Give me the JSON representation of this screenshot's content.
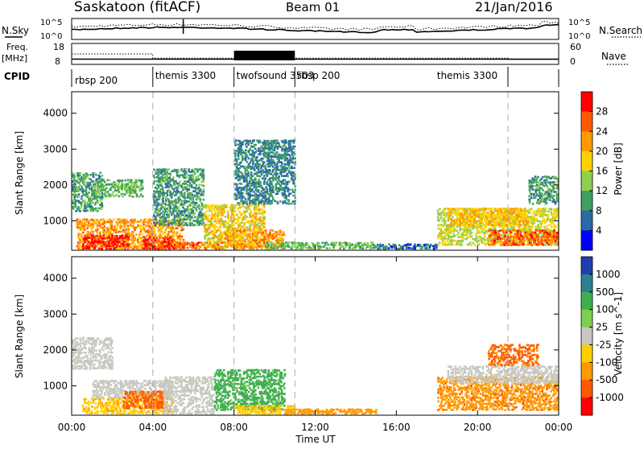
{
  "header": {
    "station": "Saskatoon (fitACF)",
    "beam": "Beam 01",
    "date": "21/Jan/2016"
  },
  "labels": {
    "nsky": "N.Sky",
    "nsearch": "N.Search",
    "freq": "Freq.",
    "freq_unit": "[MHz]",
    "nave": "Nave",
    "cpid": "CPID",
    "noise_left_top": "10^5",
    "noise_left_bot": "10^0",
    "noise_right_top": "10^5",
    "noise_right_bot": "10^0",
    "freq_left_top": "18",
    "freq_left_bot": "8",
    "nave_right_top": "60",
    "nave_right_bot": "0"
  },
  "chart_data": [
    {
      "type": "line",
      "panel": "noise",
      "title": "",
      "series": [
        {
          "name": "N.Sky",
          "style": "solid"
        },
        {
          "name": "N.Search",
          "style": "dotted"
        }
      ]
    },
    {
      "type": "line",
      "panel": "frequency / nave",
      "series": [
        {
          "name": "Freq.",
          "style": "solid",
          "x": [
            0,
            24
          ],
          "values": [
            10.5,
            10.5
          ]
        },
        {
          "name": "Nave",
          "style": "dotted",
          "x": [
            0,
            4,
            4,
            21.5,
            21.5,
            24
          ],
          "values": [
            30,
            30,
            18,
            18,
            14,
            14
          ]
        }
      ],
      "ylim_freq": [
        8,
        18
      ],
      "ylim_nave": [
        0,
        60
      ]
    },
    {
      "type": "table",
      "panel": "CPID",
      "segments": [
        {
          "label": "rbsp 200",
          "start": 0,
          "end": 4
        },
        {
          "label": "themis 3300",
          "start": 4,
          "end": 8
        },
        {
          "label": "twofsound 3503",
          "start": 8,
          "end": 11
        },
        {
          "label": "rbsp 200",
          "start": 11,
          "end": 21.5
        },
        {
          "label": "themis 3300",
          "start": 21.5,
          "end": 24
        }
      ]
    },
    {
      "type": "heatmap",
      "panel": "power",
      "ylabel": "Slant Range [km]",
      "ylim": [
        180,
        4600
      ],
      "yticks": [
        1000,
        2000,
        3000,
        4000
      ],
      "colorbar": {
        "label": "Power [dB]",
        "ticks": [
          "28",
          "24",
          "20",
          "16",
          "12",
          "8",
          "4"
        ],
        "colors": [
          "#ff0000",
          "#ff5a00",
          "#ff9a00",
          "#ffd200",
          "#8fd050",
          "#3f9f5f",
          "#2a6aa8",
          "#0000ff"
        ]
      },
      "regions": [
        {
          "t0": 0.2,
          "t1": 5.5,
          "r0": 250,
          "r1": 1100,
          "v": 22
        },
        {
          "t0": 0.5,
          "t1": 2.8,
          "r0": 250,
          "r1": 650,
          "v": 30
        },
        {
          "t0": 3.5,
          "t1": 5.0,
          "r0": 250,
          "r1": 600,
          "v": 28
        },
        {
          "t0": 5.0,
          "t1": 7.5,
          "r0": 250,
          "r1": 450,
          "v": 26
        },
        {
          "t0": 0.0,
          "t1": 1.5,
          "r0": 1300,
          "r1": 2400,
          "v": 10
        },
        {
          "t0": 1.0,
          "t1": 3.5,
          "r0": 1700,
          "r1": 2200,
          "v": 12
        },
        {
          "t0": 4.0,
          "t1": 6.5,
          "r0": 900,
          "r1": 2500,
          "v": 10
        },
        {
          "t0": 6.5,
          "t1": 9.5,
          "r0": 300,
          "r1": 1500,
          "v": 18
        },
        {
          "t0": 7.5,
          "t1": 10.5,
          "r0": 250,
          "r1": 800,
          "v": 22
        },
        {
          "t0": 8.0,
          "t1": 11.0,
          "r0": 1500,
          "r1": 3300,
          "v": 8
        },
        {
          "t0": 9.5,
          "t1": 15.0,
          "r0": 250,
          "r1": 450,
          "v": 12
        },
        {
          "t0": 15.0,
          "t1": 18.0,
          "r0": 250,
          "r1": 400,
          "v": 6
        },
        {
          "t0": 18.0,
          "t1": 24.0,
          "r0": 350,
          "r1": 1400,
          "v": 16
        },
        {
          "t0": 20.5,
          "t1": 24.0,
          "r0": 350,
          "r1": 800,
          "v": 26
        },
        {
          "t0": 18.5,
          "t1": 22.5,
          "r0": 900,
          "r1": 1400,
          "v": 20
        },
        {
          "t0": 22.5,
          "t1": 24.0,
          "r0": 1500,
          "r1": 2300,
          "v": 10
        }
      ]
    },
    {
      "type": "heatmap",
      "panel": "velocity",
      "ylabel": "Slant Range [km]",
      "ylim": [
        180,
        4600
      ],
      "yticks": [
        1000,
        2000,
        3000,
        4000
      ],
      "xlabel": "Time UT",
      "xticks": [
        "00:00",
        "04:00",
        "08:00",
        "12:00",
        "16:00",
        "20:00",
        "00:00"
      ],
      "colorbar": {
        "label": "Velocity [m s^-1]",
        "ticks": [
          "1000",
          "500",
          "100",
          "25",
          "-25",
          "-100",
          "-500",
          "-1000"
        ],
        "colors": [
          "#1f3fb0",
          "#2f7f8f",
          "#3faf4f",
          "#7fd04f",
          "#c8c8c0",
          "#ffd000",
          "#ff9a00",
          "#ff5a00",
          "#ff0000"
        ]
      },
      "regions": [
        {
          "t0": 0.0,
          "t1": 2.0,
          "r0": 1500,
          "r1": 2400,
          "v": 0
        },
        {
          "t0": 0.5,
          "t1": 5.0,
          "r0": 250,
          "r1": 700,
          "v": -80
        },
        {
          "t0": 1.0,
          "t1": 5.0,
          "r0": 700,
          "r1": 1200,
          "v": 0
        },
        {
          "t0": 2.5,
          "t1": 4.5,
          "r0": 400,
          "r1": 900,
          "v": -600
        },
        {
          "t0": 4.5,
          "t1": 7.0,
          "r0": 250,
          "r1": 1300,
          "v": 0
        },
        {
          "t0": 7.0,
          "t1": 10.5,
          "r0": 350,
          "r1": 1500,
          "v": 150
        },
        {
          "t0": 8.0,
          "t1": 11.0,
          "r0": 250,
          "r1": 500,
          "v": -80
        },
        {
          "t0": 10.5,
          "t1": 15.0,
          "r0": 250,
          "r1": 400,
          "v": -300
        },
        {
          "t0": 18.0,
          "t1": 24.0,
          "r0": 350,
          "r1": 1300,
          "v": -400
        },
        {
          "t0": 18.5,
          "t1": 24.0,
          "r0": 1100,
          "r1": 1600,
          "v": 0
        },
        {
          "t0": 20.5,
          "t1": 23.0,
          "r0": 1600,
          "r1": 2200,
          "v": -600
        }
      ]
    }
  ]
}
